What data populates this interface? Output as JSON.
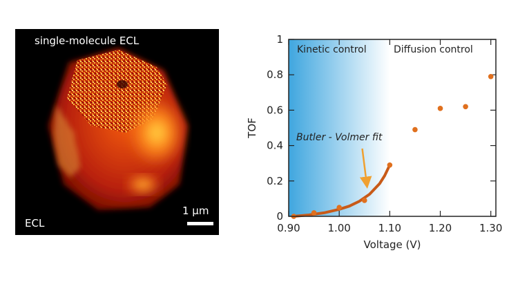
{
  "micrograph": {
    "title": "single-molecule ECL",
    "corner_label": "ECL",
    "scale_bar_label": "1 μm",
    "colors": {
      "background": "#000000",
      "hot_core": "#ffd23a",
      "mid": "#e8400c",
      "dim": "#7a0c02"
    }
  },
  "chart_data": {
    "type": "scatter",
    "xlabel": "Voltage (V)",
    "ylabel": "TOF",
    "xlim": [
      0.9,
      1.31
    ],
    "ylim": [
      0,
      1
    ],
    "x_ticks": [
      "0.90",
      "1.00",
      "1.10",
      "1.20",
      "1.30"
    ],
    "y_ticks": [
      "0",
      "0.2",
      "0.4",
      "0.6",
      "0.8",
      "1"
    ],
    "regions": [
      {
        "label": "Kinetic control",
        "x_range": [
          0.9,
          1.1
        ],
        "fill": "gradient-blue"
      },
      {
        "label": "Diffusion control",
        "x_range": [
          1.1,
          1.31
        ]
      }
    ],
    "points": [
      {
        "x": 0.91,
        "y": 0.0
      },
      {
        "x": 0.95,
        "y": 0.02
      },
      {
        "x": 1.0,
        "y": 0.05
      },
      {
        "x": 1.05,
        "y": 0.09
      },
      {
        "x": 1.1,
        "y": 0.29
      },
      {
        "x": 1.15,
        "y": 0.49
      },
      {
        "x": 1.2,
        "y": 0.61
      },
      {
        "x": 1.25,
        "y": 0.62
      },
      {
        "x": 1.3,
        "y": 0.79
      }
    ],
    "fit": {
      "label": "Butler - Volmer fit",
      "x": [
        0.91,
        0.94,
        0.97,
        1.0,
        1.02,
        1.04,
        1.06,
        1.08,
        1.09,
        1.1
      ],
      "y": [
        0.0,
        0.008,
        0.02,
        0.04,
        0.058,
        0.085,
        0.125,
        0.185,
        0.23,
        0.29
      ]
    },
    "annotation": {
      "text": "Butler - Volmer fit",
      "x": 0.98,
      "y": 0.43,
      "arrow_to": [
        1.055,
        0.17
      ]
    },
    "colors": {
      "point": "#e0701e",
      "fit": "#c85a18",
      "arrow": "#f0a030",
      "gradient_start": "#3fa6df",
      "gradient_end": "#ffffff"
    }
  }
}
